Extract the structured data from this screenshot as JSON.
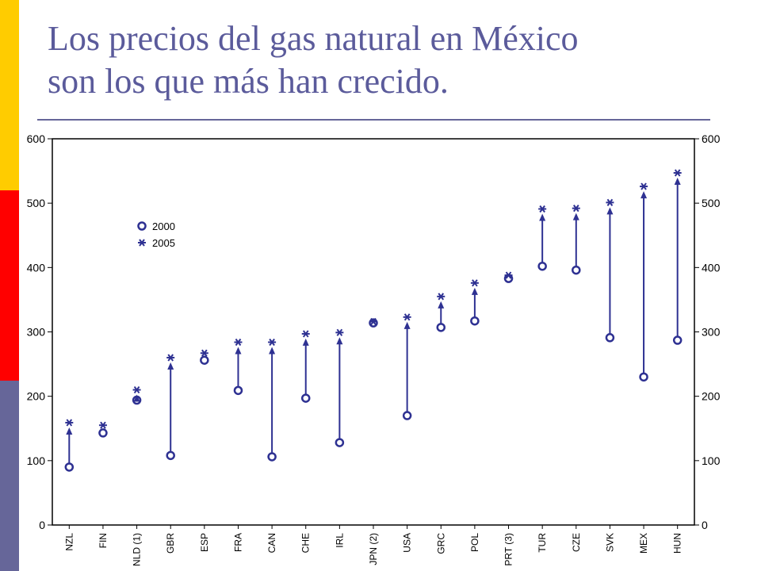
{
  "slide": {
    "title_line1": "Los precios del gas natural en México",
    "title_line2": "son los que más han crecido."
  },
  "colors": {
    "accent_bar": [
      "#ffcc00",
      "#ff0000",
      "#666699"
    ],
    "title": "#5b5b9b",
    "series": "#2e3192"
  },
  "chart_data": {
    "type": "scatter",
    "categories": [
      "NZL",
      "FIN",
      "NLD (1)",
      "GBR",
      "ESP",
      "FRA",
      "CAN",
      "CHE",
      "IRL",
      "JPN (2)",
      "USA",
      "GRC",
      "POL",
      "PRT (3)",
      "TUR",
      "CZE",
      "SVK",
      "MEX",
      "HUN"
    ],
    "series": [
      {
        "name": "2000",
        "marker": "circle",
        "values": [
          90,
          143,
          194,
          108,
          256,
          209,
          106,
          197,
          128,
          314,
          170,
          307,
          317,
          383,
          402,
          396,
          291,
          230,
          287
        ]
      },
      {
        "name": "2005",
        "marker": "asterisk",
        "values": [
          159,
          155,
          210,
          260,
          267,
          284,
          284,
          297,
          299,
          316,
          323,
          355,
          376,
          388,
          491,
          492,
          501,
          526,
          547
        ]
      }
    ],
    "arrows": "from 2000 value up to 2005 value",
    "ylim": [
      0,
      600
    ],
    "yticks": [
      0,
      100,
      200,
      300,
      400,
      500,
      600
    ],
    "y_axis_both_sides": true,
    "legend_position": "top-left",
    "grid": false
  }
}
